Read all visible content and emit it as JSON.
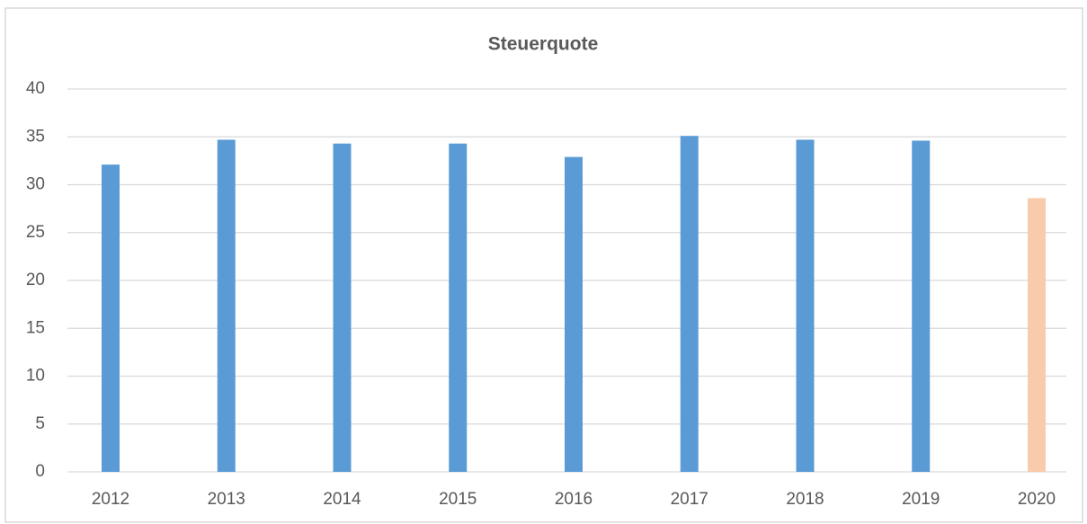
{
  "chart_data": {
    "type": "bar",
    "title": "Steuerquote",
    "categories": [
      "2012",
      "2013",
      "2014",
      "2015",
      "2016",
      "2017",
      "2018",
      "2019",
      "2020"
    ],
    "values": [
      32.1,
      34.7,
      34.3,
      34.3,
      32.9,
      35.1,
      34.7,
      34.6,
      28.6
    ],
    "colors": [
      "#5b9bd5",
      "#5b9bd5",
      "#5b9bd5",
      "#5b9bd5",
      "#5b9bd5",
      "#5b9bd5",
      "#5b9bd5",
      "#5b9bd5",
      "#f8cbad"
    ],
    "ylim": [
      0,
      40
    ],
    "yticks": [
      0,
      5,
      10,
      15,
      20,
      25,
      30,
      35,
      40
    ],
    "grid": true
  }
}
